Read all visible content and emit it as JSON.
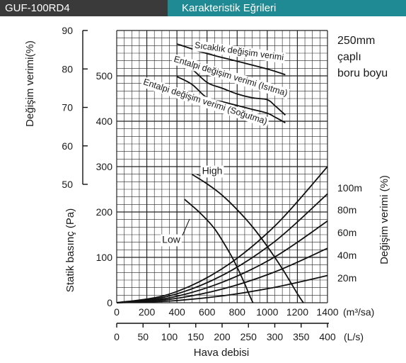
{
  "header": {
    "model": "GUF-100RD4",
    "title": "Karakteristik Eğrileri"
  },
  "chart_data": {
    "type": "line",
    "title": "Karakteristik Eğrileri",
    "xlabel": "Hava debisi",
    "x_axis_primary": {
      "unit": "(m³/sa)",
      "ticks": [
        0,
        200,
        400,
        600,
        800,
        1000,
        1200,
        1400
      ],
      "range": [
        0,
        1400
      ]
    },
    "x_axis_secondary": {
      "unit": "(L/s)",
      "ticks": [
        0,
        50,
        100,
        150,
        200,
        250,
        300,
        350,
        400
      ],
      "range": [
        0,
        400
      ]
    },
    "y_axis_pressure": {
      "label": "Statik basınç (Pa)",
      "ticks": [
        0,
        100,
        200,
        300,
        400,
        500
      ],
      "range": [
        0,
        600
      ]
    },
    "y_axis_efficiency": {
      "label": "Değişim verimi(%)",
      "ticks": [
        50,
        60,
        70,
        80,
        90
      ],
      "range": [
        50,
        90
      ]
    },
    "right_axis_label": "Değişim verimi (%)",
    "duct_note": [
      "250mm",
      "çaplı",
      "boru boyu"
    ],
    "grid": true,
    "fan_curves": [
      {
        "name": "High",
        "x": [
          500,
          600,
          700,
          800,
          900,
          1000,
          1100,
          1200,
          1240
        ],
        "y": [
          283,
          262,
          237,
          205,
          168,
          124,
          75,
          20,
          0
        ]
      },
      {
        "name": "Low",
        "x": [
          450,
          550,
          650,
          750,
          800,
          850,
          880,
          905
        ],
        "y": [
          228,
          199,
          163,
          110,
          78,
          42,
          18,
          0
        ]
      }
    ],
    "duct_resistance_curves": [
      {
        "name": "100m",
        "x": [
          0,
          350,
          700,
          1050,
          1400
        ],
        "y": [
          0,
          19,
          75,
          169,
          300
        ]
      },
      {
        "name": "80m",
        "x": [
          0,
          350,
          700,
          1050,
          1400
        ],
        "y": [
          0,
          15,
          60,
          135,
          240
        ]
      },
      {
        "name": "60m",
        "x": [
          0,
          350,
          700,
          1050,
          1400
        ],
        "y": [
          0,
          11,
          45,
          101,
          180
        ]
      },
      {
        "name": "40m",
        "x": [
          0,
          350,
          700,
          1050,
          1400
        ],
        "y": [
          0,
          7.5,
          30,
          68,
          120
        ]
      },
      {
        "name": "20m",
        "x": [
          0,
          350,
          700,
          1050,
          1400
        ],
        "y": [
          0,
          3.7,
          15,
          34,
          60
        ]
      }
    ],
    "efficiency_curves": [
      {
        "name": "Sıcaklık değişim verimi",
        "x": [
          400,
          600,
          800,
          1000,
          1120
        ],
        "y": [
          86.5,
          84,
          82,
          80,
          78.5
        ]
      },
      {
        "name": "Entalpi değişim verimi (Isıtma)",
        "x": [
          400,
          500,
          600,
          700,
          800,
          900,
          1000,
          1050,
          1120
        ],
        "y": [
          83,
          80,
          76.5,
          75,
          73.5,
          72.5,
          72,
          70.5,
          68
        ]
      },
      {
        "name": "Entalpi değişim verimi (Soğutma)",
        "x": [
          400,
          500,
          600,
          700,
          800,
          900,
          1000,
          1050,
          1120
        ],
        "y": [
          78,
          76,
          72.5,
          71.5,
          70.5,
          69.5,
          68.5,
          67.5,
          66
        ]
      }
    ],
    "callouts": {
      "high": "High",
      "low": "Low"
    }
  }
}
